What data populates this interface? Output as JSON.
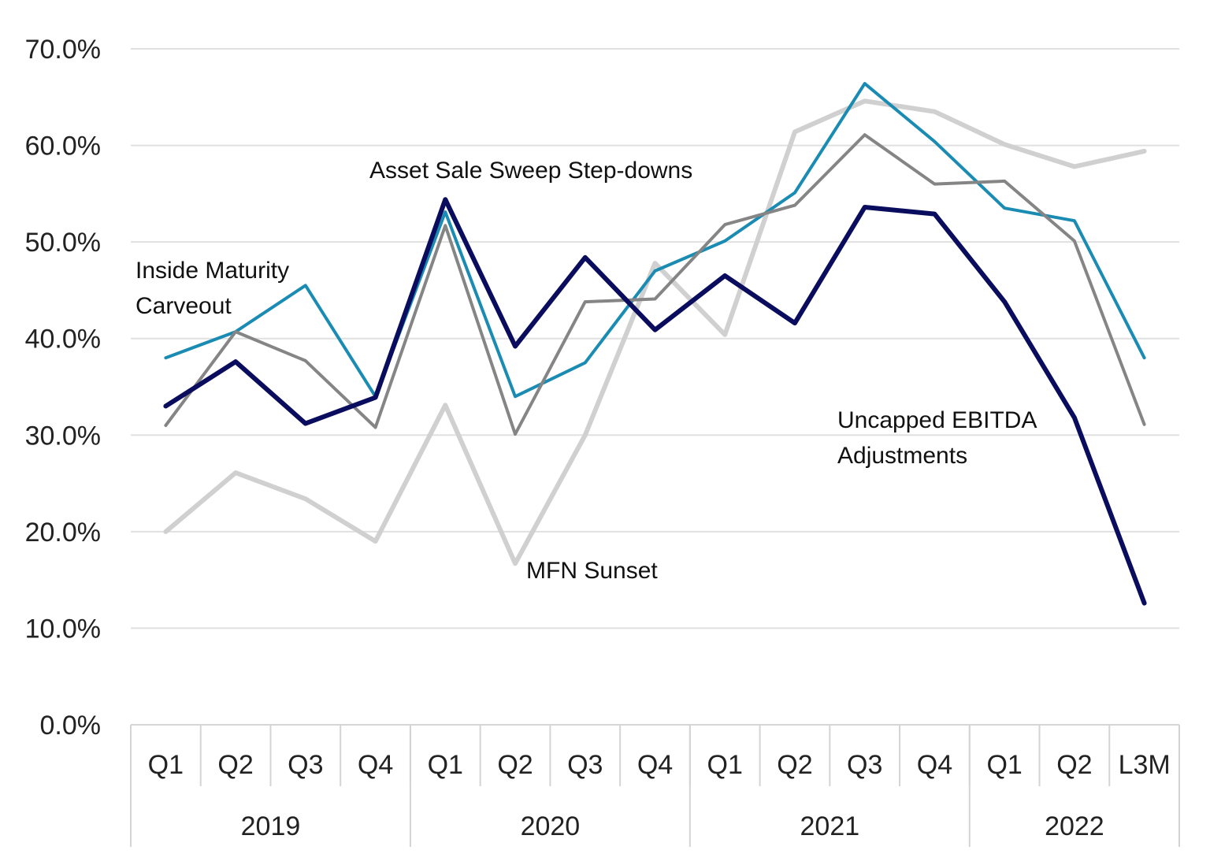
{
  "chart_data": {
    "type": "line",
    "title": "",
    "xlabel": "",
    "ylabel": "",
    "ylim": [
      0,
      70
    ],
    "yticks": [
      "0.0%",
      "10.0%",
      "20.0%",
      "30.0%",
      "40.0%",
      "50.0%",
      "60.0%",
      "70.0%"
    ],
    "grid": true,
    "categories": [
      "Q1",
      "Q2",
      "Q3",
      "Q4",
      "Q1",
      "Q2",
      "Q3",
      "Q4",
      "Q1",
      "Q2",
      "Q3",
      "Q4",
      "Q1",
      "Q2",
      "L3M"
    ],
    "groups": [
      {
        "label": "2019",
        "count": 4
      },
      {
        "label": "2020",
        "count": 4
      },
      {
        "label": "2021",
        "count": 4
      },
      {
        "label": "2022",
        "count": 3
      }
    ],
    "series": [
      {
        "name": "MFN Sunset",
        "color": "#d0d0d0",
        "values": [
          20.0,
          26.1,
          23.4,
          19.0,
          33.1,
          16.7,
          30.0,
          47.8,
          40.4,
          61.4,
          64.6,
          63.5,
          60.1,
          57.8,
          59.4
        ]
      },
      {
        "name": "Inside Maturity Carveout",
        "color": "#1a8bb3",
        "values": [
          38.0,
          40.7,
          45.5,
          34.0,
          53.1,
          34.0,
          37.5,
          47.0,
          50.1,
          55.1,
          66.4,
          60.4,
          53.5,
          52.2,
          38.0
        ]
      },
      {
        "name": "Asset Sale Sweep Step-downs",
        "color": "#858585",
        "values": [
          31.0,
          40.7,
          37.7,
          30.8,
          51.7,
          30.1,
          43.8,
          44.1,
          51.8,
          53.8,
          61.1,
          56.0,
          56.3,
          50.1,
          31.1
        ]
      },
      {
        "name": "Uncapped EBITDA Adjustments",
        "color": "#0a0d5e",
        "values": [
          33.0,
          37.6,
          31.2,
          33.9,
          54.4,
          39.2,
          48.4,
          40.9,
          46.5,
          41.6,
          53.6,
          52.9,
          43.8,
          31.8,
          12.6
        ]
      }
    ],
    "annotations": [
      {
        "lines": [
          "Inside Maturity",
          "Carveout"
        ],
        "series": "Inside Maturity Carveout"
      },
      {
        "lines": [
          "Asset Sale Sweep Step-downs"
        ],
        "series": "Asset Sale Sweep Step-downs"
      },
      {
        "lines": [
          "Uncapped EBITDA",
          "Adjustments"
        ],
        "series": "Uncapped EBITDA Adjustments"
      },
      {
        "lines": [
          "MFN Sunset"
        ],
        "series": "MFN Sunset"
      }
    ]
  }
}
